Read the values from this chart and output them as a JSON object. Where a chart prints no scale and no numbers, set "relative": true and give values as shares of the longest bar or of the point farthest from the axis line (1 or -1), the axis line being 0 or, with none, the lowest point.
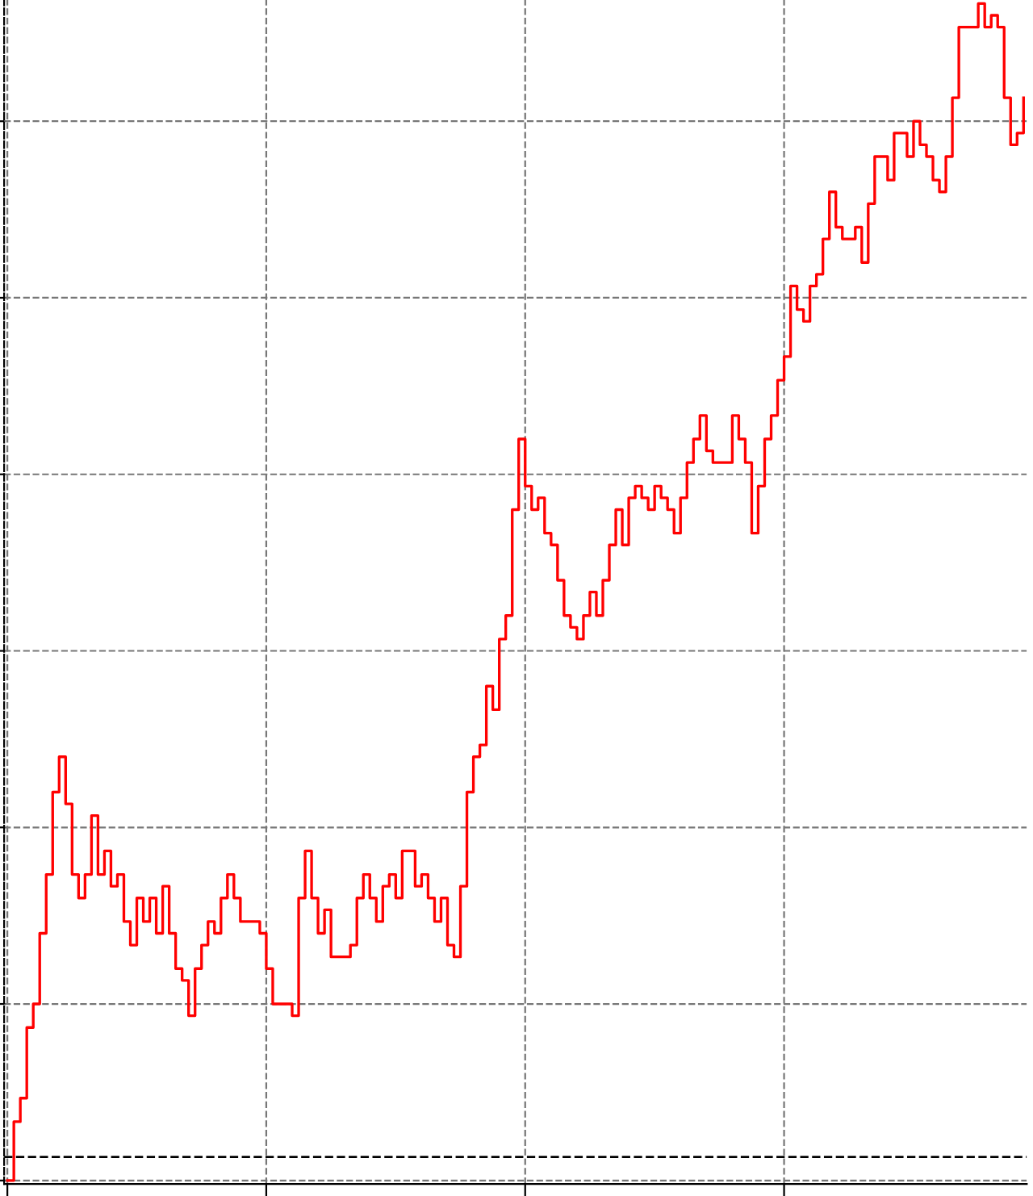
{
  "chart_data": {
    "type": "step",
    "relative": true,
    "grid": true,
    "line_style": "solid",
    "categories": [
      null,
      null,
      null,
      null,
      null,
      null,
      null,
      null,
      null,
      null,
      null,
      null,
      null,
      null,
      null,
      null,
      null,
      null,
      null,
      null,
      null,
      null,
      null,
      null,
      null,
      null,
      null,
      null,
      null,
      null,
      null,
      null,
      null,
      null,
      null,
      null,
      null,
      null,
      null,
      null,
      null,
      null,
      null,
      null,
      null,
      null,
      null,
      null,
      null,
      null,
      null,
      null,
      null,
      null,
      null,
      null,
      null,
      null,
      null,
      null,
      null,
      null,
      null,
      null,
      null,
      null,
      null,
      null,
      null,
      null,
      null,
      null,
      null,
      null,
      null,
      null,
      null,
      null,
      null,
      null,
      null,
      null,
      null,
      null,
      null,
      null,
      null,
      null,
      null,
      null,
      null,
      null,
      null,
      null,
      null,
      null,
      null,
      null,
      null,
      null,
      null,
      null,
      null,
      null,
      null,
      null,
      null,
      null,
      null,
      null,
      null,
      null,
      null,
      null,
      null,
      null,
      null,
      null,
      null,
      null,
      null,
      null,
      null,
      null,
      null,
      null,
      null,
      null,
      null,
      null,
      null,
      null,
      null,
      null,
      null,
      null,
      null,
      null,
      null,
      null,
      null,
      null,
      null,
      null,
      null,
      null,
      null,
      null,
      null,
      null,
      null,
      null,
      null,
      null,
      null,
      null,
      null,
      null
    ],
    "series": [
      {
        "color": "#ff0000",
        "values": [
          0.0,
          0.05,
          0.07,
          0.13,
          0.15,
          0.21,
          0.26,
          0.33,
          0.36,
          0.32,
          0.26,
          0.24,
          0.26,
          0.31,
          0.26,
          0.28,
          0.25,
          0.26,
          0.22,
          0.2,
          0.24,
          0.22,
          0.24,
          0.21,
          0.25,
          0.21,
          0.18,
          0.17,
          0.14,
          0.18,
          0.2,
          0.22,
          0.21,
          0.24,
          0.26,
          0.24,
          0.22,
          0.22,
          0.22,
          0.21,
          0.18,
          0.15,
          0.15,
          0.15,
          0.14,
          0.24,
          0.28,
          0.24,
          0.21,
          0.23,
          0.19,
          0.19,
          0.19,
          0.2,
          0.24,
          0.26,
          0.24,
          0.22,
          0.25,
          0.26,
          0.24,
          0.28,
          0.28,
          0.25,
          0.26,
          0.24,
          0.22,
          0.24,
          0.2,
          0.19,
          0.25,
          0.33,
          0.36,
          0.37,
          0.42,
          0.4,
          0.46,
          0.48,
          0.57,
          0.63,
          0.59,
          0.57,
          0.58,
          0.55,
          0.54,
          0.51,
          0.48,
          0.47,
          0.46,
          0.48,
          0.5,
          0.48,
          0.51,
          0.54,
          0.57,
          0.54,
          0.58,
          0.59,
          0.58,
          0.57,
          0.59,
          0.58,
          0.57,
          0.55,
          0.58,
          0.61,
          0.63,
          0.65,
          0.62,
          0.61,
          0.61,
          0.61,
          0.65,
          0.63,
          0.61,
          0.55,
          0.59,
          0.63,
          0.65,
          0.68,
          0.7,
          0.76,
          0.74,
          0.73,
          0.76,
          0.77,
          0.8,
          0.84,
          0.81,
          0.8,
          0.8,
          0.81,
          0.78,
          0.83,
          0.87,
          0.87,
          0.85,
          0.89,
          0.89,
          0.87,
          0.9,
          0.88,
          0.87,
          0.85,
          0.84,
          0.87,
          0.92,
          0.98,
          0.98,
          0.98,
          1.0,
          0.98,
          0.99,
          0.98,
          0.92,
          0.88,
          0.89,
          0.92
        ]
      }
    ],
    "ref_lines": [
      {
        "axis": "y",
        "value": 0.02,
        "color": "#000000",
        "line_style": "dashed"
      }
    ]
  }
}
